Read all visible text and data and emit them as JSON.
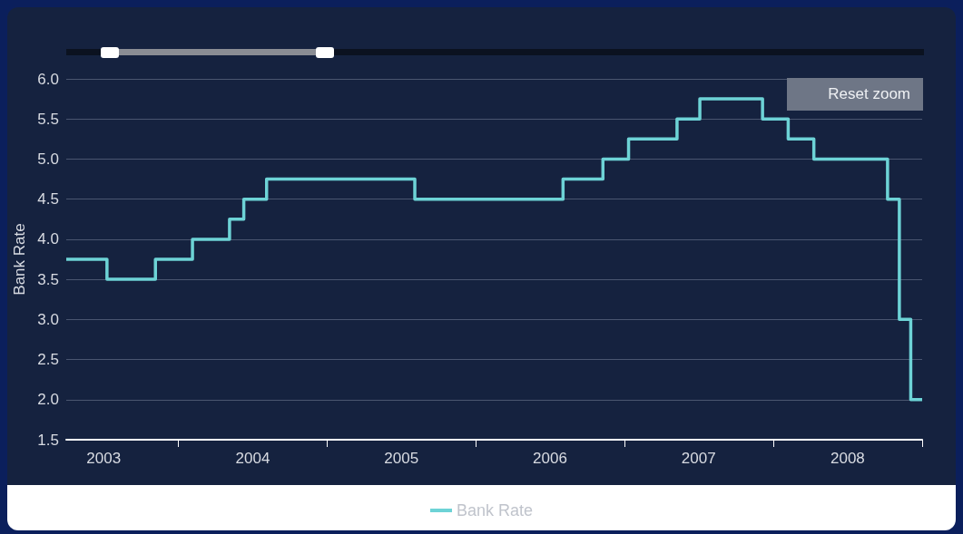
{
  "chart_data": {
    "type": "step",
    "ylabel": "Bank Rate",
    "x": [
      "2003-04-01",
      "2003-07-10",
      "2003-11-06",
      "2004-02-05",
      "2004-05-06",
      "2004-06-10",
      "2004-08-05",
      "2005-08-04",
      "2006-08-03",
      "2006-11-09",
      "2007-01-11",
      "2007-05-10",
      "2007-07-05",
      "2007-12-06",
      "2008-02-07",
      "2008-04-10",
      "2008-10-08",
      "2008-11-06",
      "2008-12-04",
      "2009-01-01"
    ],
    "series": [
      {
        "name": "Bank Rate",
        "color": "#6dd3d6",
        "values": [
          3.75,
          3.5,
          3.75,
          4.0,
          4.25,
          4.5,
          4.75,
          4.5,
          4.75,
          5.0,
          5.25,
          5.5,
          5.75,
          5.5,
          5.25,
          5.0,
          4.5,
          3.0,
          2.0,
          2.0
        ]
      }
    ],
    "xlim": [
      "2003-04-01",
      "2009-01-01"
    ],
    "xticks": [
      {
        "value": "2003-07-02",
        "label": "2003"
      },
      {
        "value": "2004-01-01",
        "label": null
      },
      {
        "value": "2004-07-02",
        "label": "2004"
      },
      {
        "value": "2005-01-01",
        "label": null
      },
      {
        "value": "2005-07-02",
        "label": "2005"
      },
      {
        "value": "2006-01-01",
        "label": null
      },
      {
        "value": "2006-07-02",
        "label": "2006"
      },
      {
        "value": "2007-01-01",
        "label": null
      },
      {
        "value": "2007-07-02",
        "label": "2007"
      },
      {
        "value": "2008-01-01",
        "label": null
      },
      {
        "value": "2008-07-02",
        "label": "2008"
      },
      {
        "value": "2009-01-01",
        "label": null
      }
    ],
    "ylim": [
      1.5,
      6.0
    ],
    "yticks": [
      {
        "value": 1.5,
        "label": "1.5"
      },
      {
        "value": 2,
        "label": "2.0"
      },
      {
        "value": 2.5,
        "label": "2.5"
      },
      {
        "value": 3,
        "label": "3.0"
      },
      {
        "value": 3.5,
        "label": "3.5"
      },
      {
        "value": 4,
        "label": "4.0"
      },
      {
        "value": 4.5,
        "label": "4.5"
      },
      {
        "value": 5,
        "label": "5.0"
      },
      {
        "value": 5.5,
        "label": "5.5"
      },
      {
        "value": 6,
        "label": "6.0"
      }
    ],
    "grid": "y",
    "legend": "bottom",
    "marker": "none",
    "line_style": "solid",
    "annotations": [
      "Reset zoom"
    ]
  }
}
